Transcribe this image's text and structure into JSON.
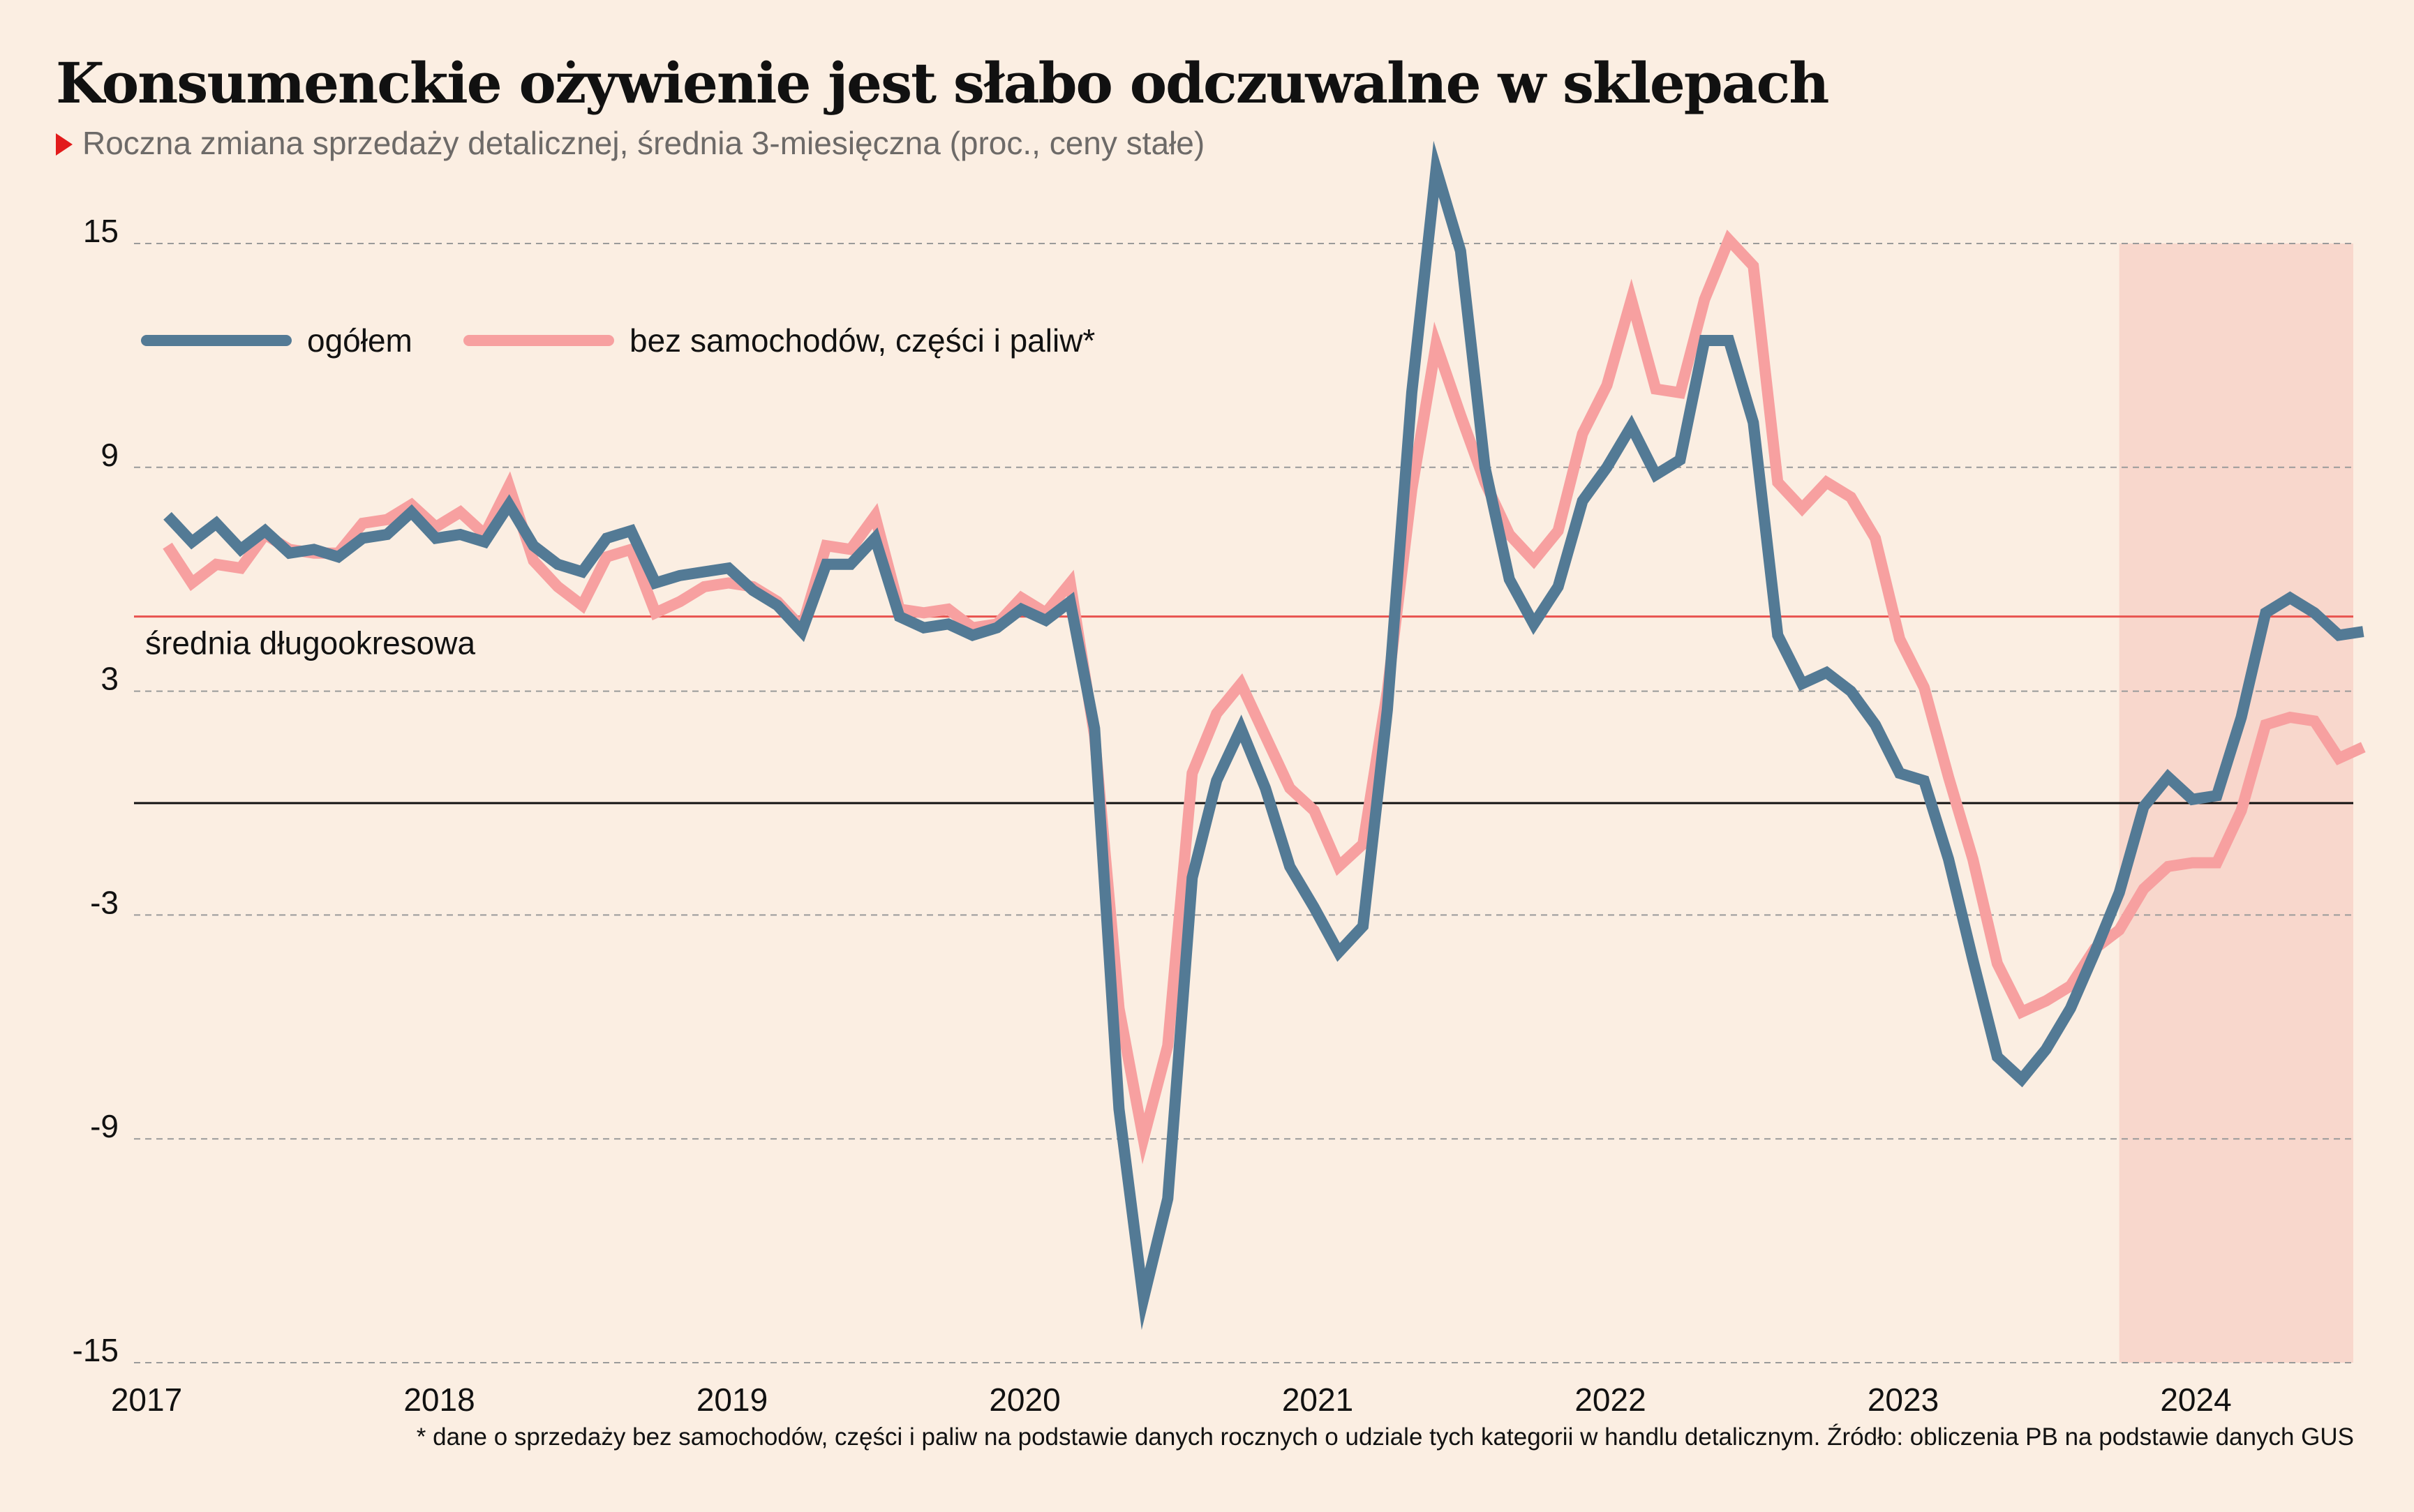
{
  "title": "Konsumenckie ożywienie jest słabo odczuwalne w sklepach",
  "subtitle": "Roczna zmiana sprzedaży detalicznej, średnia 3-miesięczna (proc., ceny stałe)",
  "footnote": "* dane o sprzedaży bez samochodów, części i paliw na podstawie danych rocznych o udziale tych kategorii w handlu detalicznym. Źródło: obliczenia PB na podstawie danych GUS",
  "colors": {
    "background": "#fbeee2",
    "ogolem": "#537a95",
    "bez_samochodow": "#f7a0a0",
    "reference_line": "#e8534f",
    "highlight_band": "#f8d7cc",
    "grid": "#9a9a9a",
    "zero_line": "#111111"
  },
  "chart_data": {
    "type": "line",
    "title": "Konsumenckie ożywienie jest słabo odczuwalne w sklepach",
    "subtitle": "Roczna zmiana sprzedaży detalicznej, średnia 3-miesięczna (proc., ceny stałe)",
    "xlabel": "",
    "ylabel": "",
    "x_start": "2017-01",
    "x_ticks": [
      "2017",
      "2018",
      "2019",
      "2020",
      "2021",
      "2022",
      "2023",
      "2024"
    ],
    "y_ticks": [
      "15",
      "9",
      "3",
      "-3",
      "-9",
      "-15"
    ],
    "ylim": [
      -15,
      15
    ],
    "grid": true,
    "legend": "top-left",
    "zero_line": true,
    "reference_line": {
      "label": "średnia długookresowa",
      "value": 5.0
    },
    "highlight": {
      "from": "2023-09",
      "to": "2024-07"
    },
    "series": [
      {
        "name": "ogółem",
        "values": [
          7.7,
          7.0,
          7.5,
          6.8,
          7.3,
          6.7,
          6.8,
          6.6,
          7.1,
          7.2,
          7.8,
          7.1,
          7.2,
          7.0,
          8.0,
          6.9,
          6.4,
          6.2,
          7.1,
          7.3,
          5.9,
          6.1,
          6.2,
          6.3,
          5.7,
          5.3,
          4.6,
          6.4,
          6.4,
          7.1,
          5.0,
          4.7,
          4.8,
          4.5,
          4.7,
          5.2,
          4.9,
          5.4,
          2.0,
          -8.2,
          -13.3,
          -10.6,
          -2.0,
          0.6,
          2.0,
          0.4,
          -1.7,
          -2.8,
          -4.0,
          -3.3,
          2.5,
          11.0,
          17.0,
          14.8,
          9.0,
          6.0,
          4.8,
          5.8,
          8.1,
          9.0,
          10.1,
          8.8,
          9.2,
          12.4,
          12.4,
          10.2,
          4.5,
          3.2,
          3.5,
          3.0,
          2.1,
          0.8,
          0.6,
          -1.5,
          -4.2,
          -6.8,
          -7.4,
          -6.6,
          -5.5,
          -4.0,
          -2.4,
          -0.1,
          0.7,
          0.1,
          0.2,
          2.3,
          5.1,
          5.5,
          5.1,
          4.5,
          4.6
        ]
      },
      {
        "name": "bez samochodów, części i paliw*",
        "values": [
          6.9,
          5.9,
          6.4,
          6.3,
          7.2,
          6.8,
          6.7,
          6.7,
          7.5,
          7.6,
          8.0,
          7.4,
          7.8,
          7.2,
          8.5,
          6.5,
          5.8,
          5.3,
          6.6,
          6.8,
          5.1,
          5.4,
          5.8,
          5.9,
          5.8,
          5.4,
          4.7,
          6.9,
          6.8,
          7.7,
          5.2,
          5.1,
          5.2,
          4.7,
          4.8,
          5.5,
          5.1,
          5.9,
          1.8,
          -5.5,
          -9.0,
          -6.5,
          0.8,
          2.4,
          3.2,
          1.8,
          0.4,
          -0.2,
          -1.7,
          -1.1,
          3.0,
          8.4,
          12.3,
          10.4,
          8.6,
          7.2,
          6.5,
          7.3,
          9.9,
          11.2,
          13.5,
          11.1,
          11.0,
          13.5,
          15.1,
          14.4,
          8.6,
          7.9,
          8.6,
          8.2,
          7.1,
          4.4,
          3.1,
          0.7,
          -1.5,
          -4.3,
          -5.6,
          -5.3,
          -4.9,
          -3.9,
          -3.4,
          -2.3,
          -1.7,
          -1.6,
          -1.6,
          -0.2,
          2.1,
          2.3,
          2.2,
          1.2,
          1.5
        ]
      }
    ]
  }
}
